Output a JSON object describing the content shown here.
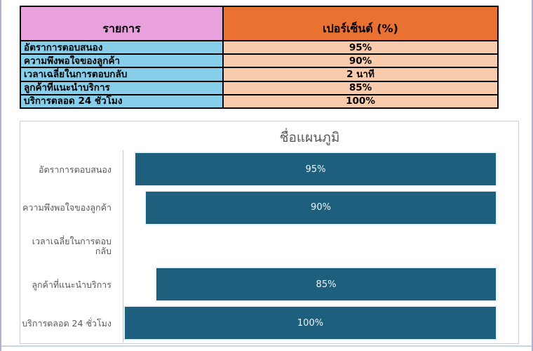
{
  "table": {
    "headers": [
      {
        "label": "รายการ",
        "bg": "#E9A1DE"
      },
      {
        "label": "เปอร์เซ็นต์ (%)",
        "bg": "#E97132"
      }
    ],
    "row_colors": {
      "item_bg": "#87CEEB",
      "value_bg": "#F8CBAD"
    },
    "rows": [
      {
        "item": "อัตราการตอบสนอง",
        "value": "95%"
      },
      {
        "item": "ความพึงพอใจของลูกค้า",
        "value": "90%"
      },
      {
        "item": "เวลาเฉลี่ยในการตอบกลับ",
        "value": "2 นาที"
      },
      {
        "item": "ลูกค้าที่แนะนำบริการ",
        "value": "85%"
      },
      {
        "item": "บริการตลอด 24 ชั่วโมง",
        "value": "100%"
      }
    ]
  },
  "chart_data": {
    "type": "bar",
    "orientation": "horizontal",
    "title": "ชื่อแผนภูมิ",
    "categories": [
      "อัตราการตอบสนอง",
      "ความพึงพอใจของลูกค้า",
      "เวลาเฉลี่ยในการตอบกลับ",
      "ลูกค้าที่แนะนำบริการ",
      "บริการตลอด 24 ชั่วโมง"
    ],
    "values": [
      95,
      90,
      null,
      85,
      100
    ],
    "data_labels": [
      "95%",
      "90%",
      "",
      "85%",
      "100%"
    ],
    "value_suffix": "%",
    "xlim": [
      0,
      100
    ],
    "bar_color": "#1E5F7E",
    "label_color": "#595959",
    "grid": false,
    "legend": false,
    "bars_right_aligned": true,
    "data_labels_position": "inside-center"
  }
}
